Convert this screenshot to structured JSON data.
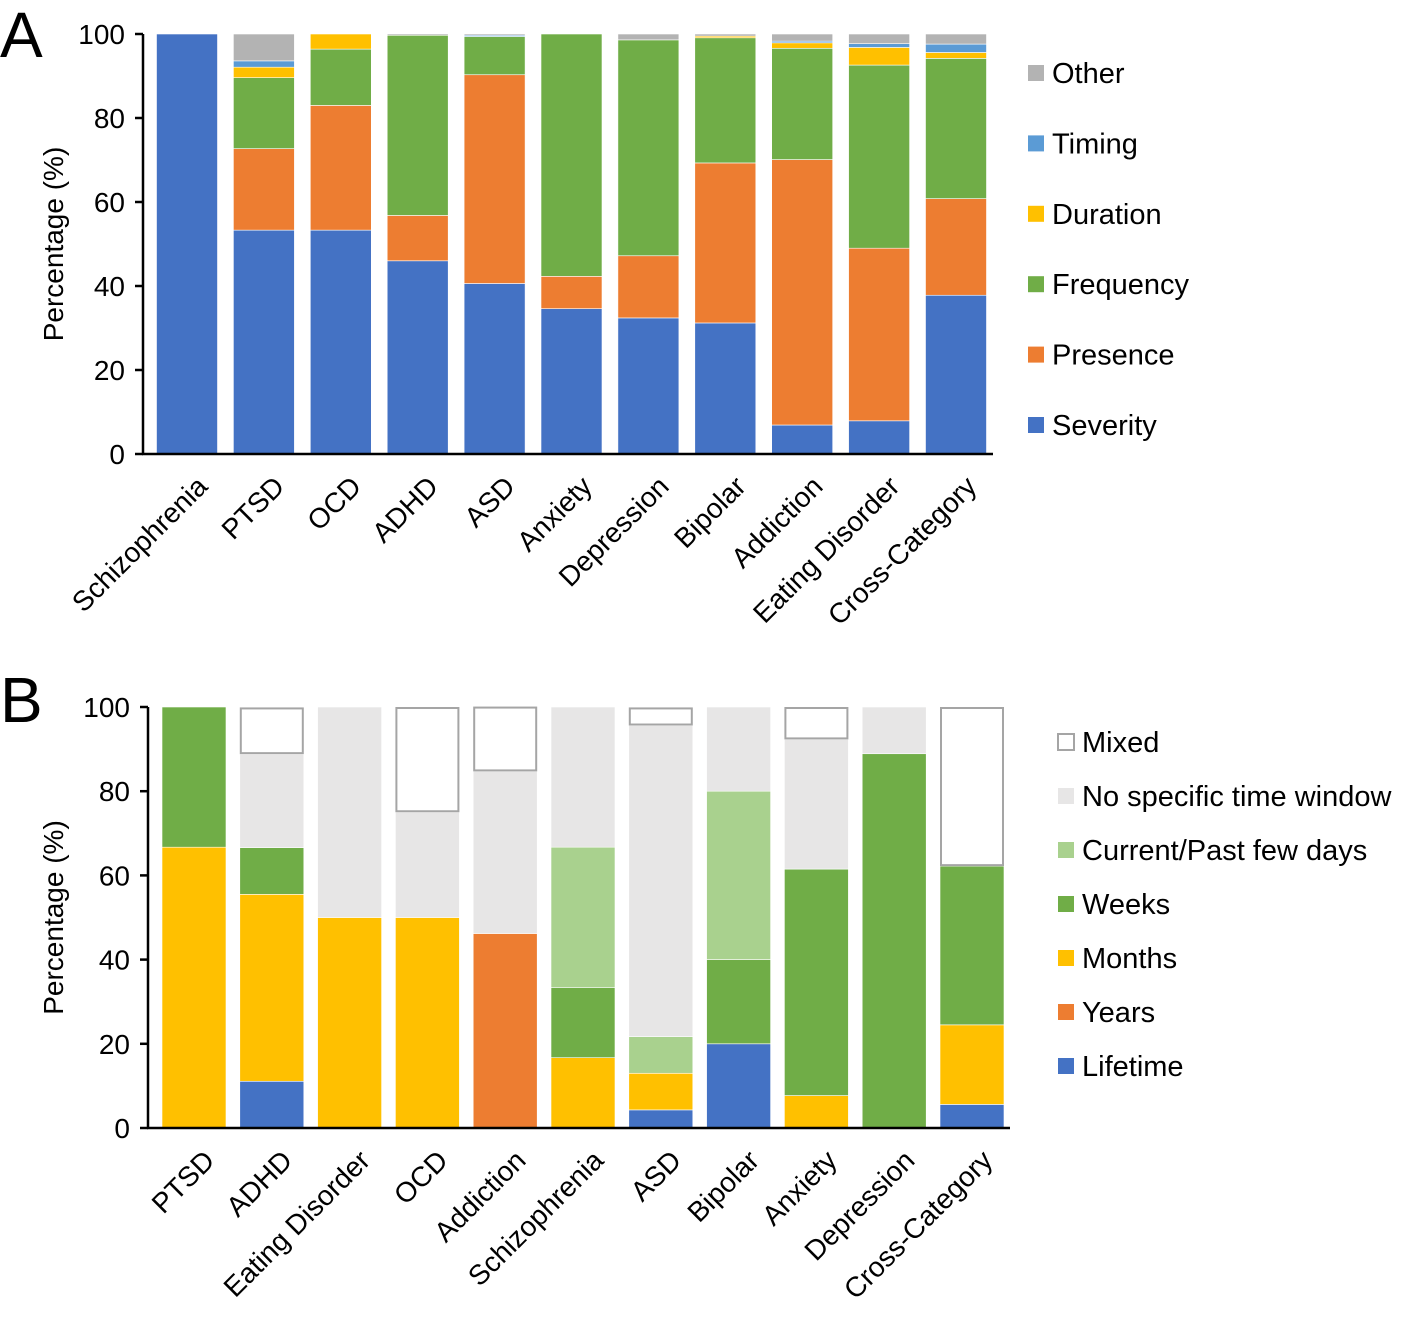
{
  "chart_data": [
    {
      "panel_label": "A",
      "type": "bar",
      "stacked": true,
      "title": "",
      "xlabel": "",
      "ylabel": "Percentage (%)",
      "ylim": [
        0,
        100
      ],
      "yticks": [
        0,
        20,
        40,
        60,
        80,
        100
      ],
      "grid": false,
      "legend_position": "right",
      "categories": [
        "Schizophrenia",
        "PTSD",
        "OCD",
        "ADHD",
        "ASD",
        "Anxiety",
        "Depression",
        "Bipolar",
        "Addiction",
        "Eating Disorder",
        "Cross-Category"
      ],
      "series": [
        {
          "name": "Severity",
          "color": "#4472C4",
          "values": [
            100,
            53.3,
            53.3,
            46.0,
            40.6,
            34.6,
            32.4,
            31.2,
            6.9,
            7.9,
            37.8
          ]
        },
        {
          "name": "Presence",
          "color": "#ED7D31",
          "values": [
            0,
            19.4,
            29.7,
            10.8,
            49.7,
            7.7,
            14.8,
            38.1,
            63.2,
            41.1,
            23.0
          ]
        },
        {
          "name": "Frequency",
          "color": "#70AD47",
          "values": [
            0,
            16.9,
            13.4,
            42.9,
            9.1,
            57.7,
            51.4,
            29.8,
            26.5,
            43.6,
            33.4
          ]
        },
        {
          "name": "Duration",
          "color": "#FFC000",
          "values": [
            0,
            2.5,
            3.6,
            0,
            0,
            0,
            0,
            0.4,
            1.3,
            4.2,
            1.4
          ]
        },
        {
          "name": "Timing",
          "color": "#5B9BD5",
          "values": [
            0,
            1.5,
            0,
            0,
            0.3,
            0,
            0,
            0,
            0.4,
            0.9,
            2.0
          ]
        },
        {
          "name": "Other",
          "color": "#B3B3B3",
          "values": [
            0,
            6.4,
            0,
            0.3,
            0.3,
            0,
            1.4,
            0.5,
            1.7,
            2.3,
            2.4
          ]
        }
      ]
    },
    {
      "panel_label": "B",
      "type": "bar",
      "stacked": true,
      "title": "",
      "xlabel": "",
      "ylabel": "Percentage (%)",
      "ylim": [
        0,
        100
      ],
      "yticks": [
        0,
        20,
        40,
        60,
        80,
        100
      ],
      "grid": false,
      "legend_position": "right",
      "categories": [
        "PTSD",
        "ADHD",
        "Eating Disorder",
        "OCD",
        "Addiction",
        "Schizophrenia",
        "ASD",
        "Bipolar",
        "Anxiety",
        "Depression",
        "Cross-Category"
      ],
      "series": [
        {
          "name": "Lifetime",
          "color": "#4472C4",
          "values": [
            0,
            11.1,
            0,
            0,
            0,
            0,
            4.3,
            20,
            0,
            0,
            5.6
          ]
        },
        {
          "name": "Years",
          "color": "#ED7D31",
          "values": [
            0,
            0,
            0,
            0,
            46.2,
            0,
            0,
            0,
            0,
            0,
            0
          ]
        },
        {
          "name": "Months",
          "color": "#FFC000",
          "values": [
            66.7,
            44.4,
            50,
            50,
            0,
            16.7,
            8.7,
            0,
            7.7,
            0,
            18.9
          ]
        },
        {
          "name": "Weeks",
          "color": "#70AD47",
          "values": [
            33.3,
            11.1,
            0,
            0,
            0,
            16.7,
            0,
            20,
            53.8,
            88.9,
            37.7
          ]
        },
        {
          "name": "Current/Past few days",
          "color": "#A9D18E",
          "values": [
            0,
            0,
            0,
            0,
            0,
            33.3,
            8.7,
            40,
            0,
            0,
            0
          ]
        },
        {
          "name": "No specific time window",
          "color": "#E7E6E6",
          "values": [
            0,
            22.2,
            50,
            25,
            38.5,
            33.3,
            73.9,
            20,
            30.8,
            11.1,
            0
          ]
        },
        {
          "name": "Mixed",
          "color": "#FFFFFF",
          "stroke": "#A5A5A5",
          "values": [
            0,
            11.1,
            0,
            25,
            15.4,
            0,
            4.3,
            0,
            7.7,
            0,
            37.8
          ]
        }
      ]
    }
  ]
}
